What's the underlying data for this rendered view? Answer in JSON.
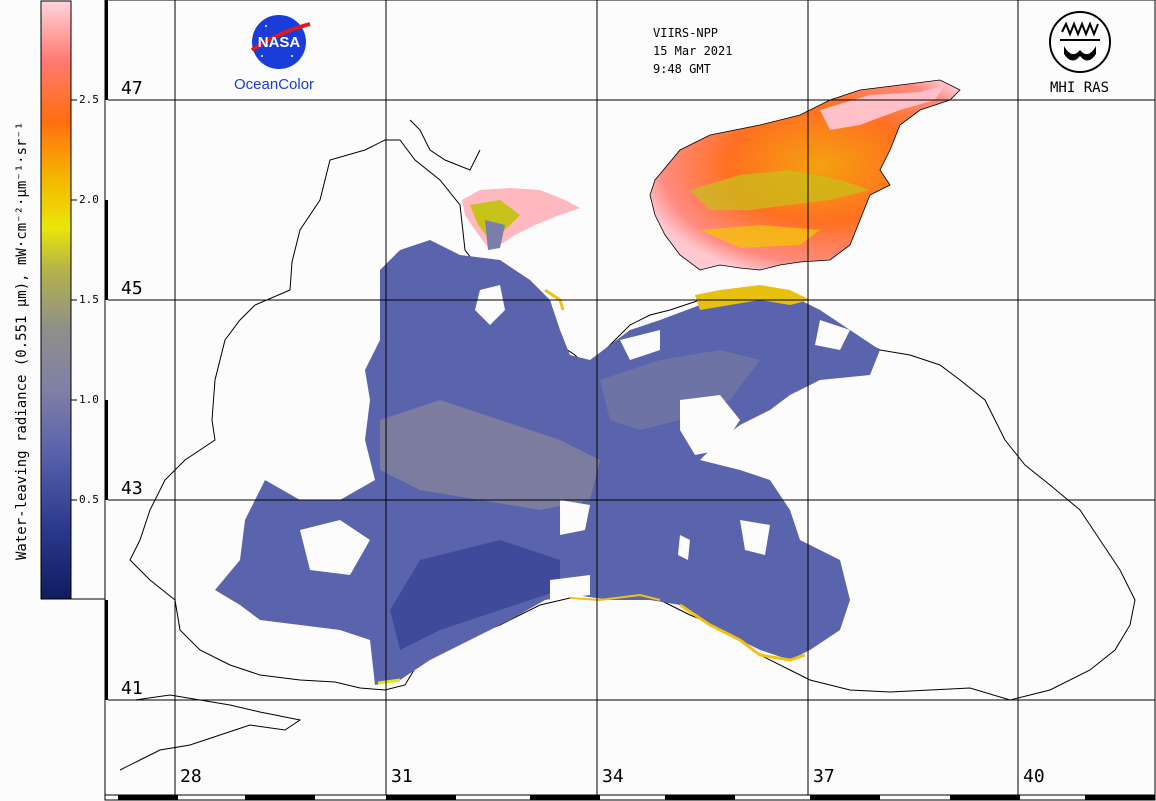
{
  "info": {
    "sensor": "VIIRS-NPP",
    "date": "15 Mar 2021",
    "time": "9:48 GMT"
  },
  "logos": {
    "nasa_text": "NASA",
    "nasa_caption": "OceanColor",
    "mhi_caption": "MHI RAS"
  },
  "colorbar": {
    "title": "Water-leaving radiance (0.551 µm), mW·cm⁻²·µm⁻¹·sr⁻¹",
    "ticks": [
      "2.5",
      "2.0",
      "1.5",
      "1.0",
      "0.5"
    ],
    "range": [
      0,
      3.0
    ],
    "colors": [
      "#1a2a6c",
      "#3f4fa0",
      "#6b73b4",
      "#8a8aa0",
      "#9a9a6a",
      "#c6c21a",
      "#f2ee05",
      "#f5a000",
      "#ff6a10",
      "#ff8c70",
      "#ffd0d8"
    ]
  },
  "grid": {
    "latitudes": [
      "47",
      "45",
      "43",
      "41"
    ],
    "longitudes": [
      "28",
      "31",
      "34",
      "37",
      "40"
    ]
  }
}
